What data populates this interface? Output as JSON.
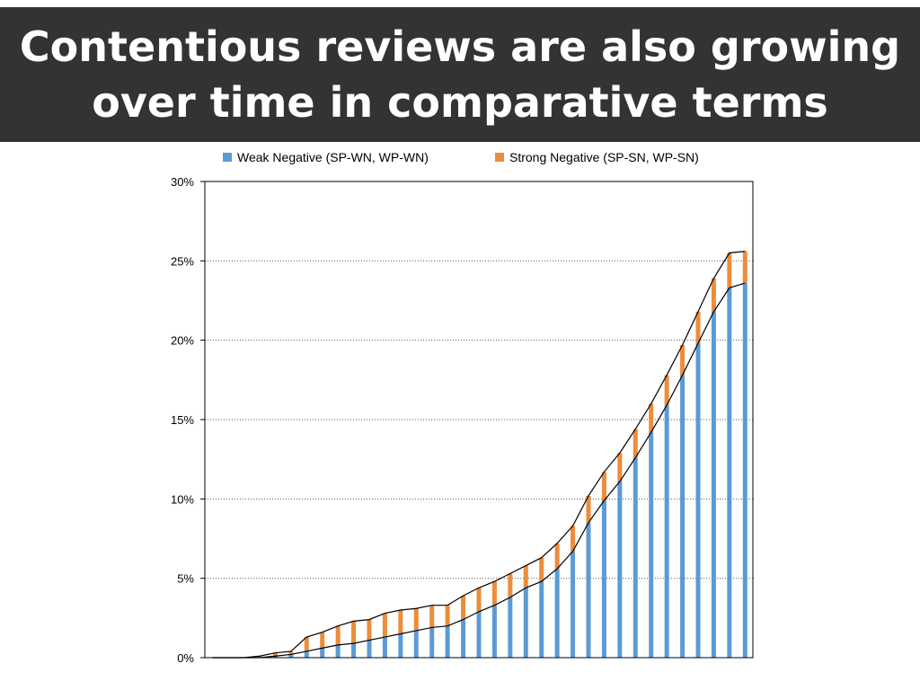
{
  "slide": {
    "title": "Contentious reviews are also growing over time in comparative terms"
  },
  "chart_data": {
    "type": "bar",
    "stacked": true,
    "title": "",
    "xlabel": "",
    "ylabel": "",
    "ylim": [
      0,
      30
    ],
    "y_ticks": [
      "0%",
      "5%",
      "10%",
      "15%",
      "20%",
      "25%",
      "30%"
    ],
    "grid": "horizontal dotted",
    "legend_position": "top",
    "series": [
      {
        "name": "Weak Negative (SP-WN, WP-WN)",
        "color": "#5B9BD5",
        "values": [
          0,
          0,
          0,
          0,
          0.1,
          0.2,
          0.4,
          0.6,
          0.8,
          0.9,
          1.1,
          1.3,
          1.5,
          1.7,
          1.9,
          2.0,
          2.4,
          2.9,
          3.3,
          3.8,
          4.4,
          4.8,
          5.6,
          6.7,
          8.5,
          9.9,
          11.1,
          12.6,
          14.2,
          15.9,
          17.8,
          19.8,
          21.8,
          23.3,
          23.6
        ]
      },
      {
        "name": "Strong Negative (SP-SN, WP-SN)",
        "color": "#ED8C3A",
        "values": [
          0,
          0,
          0,
          0.1,
          0.2,
          0.2,
          0.9,
          1.0,
          1.2,
          1.4,
          1.3,
          1.5,
          1.5,
          1.4,
          1.4,
          1.3,
          1.5,
          1.5,
          1.5,
          1.5,
          1.4,
          1.5,
          1.6,
          1.6,
          1.7,
          1.8,
          1.8,
          1.8,
          1.8,
          1.9,
          1.9,
          2.0,
          2.1,
          2.2,
          2.0
        ]
      }
    ]
  }
}
